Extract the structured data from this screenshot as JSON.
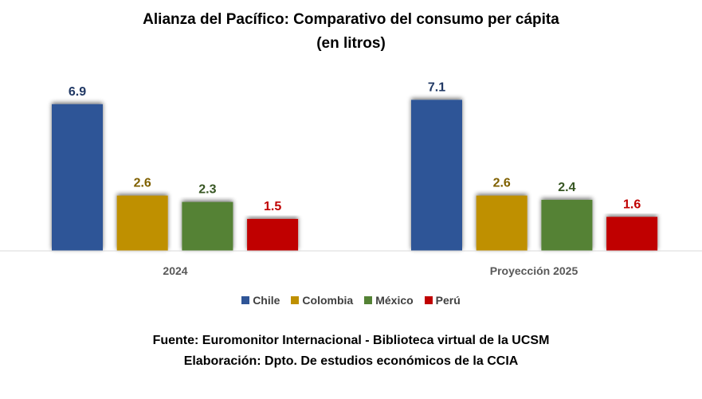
{
  "chart_data": {
    "type": "bar",
    "title": "Alianza del Pacífico: Comparativo del consumo per cápita",
    "subtitle": "(en litros)",
    "categories": [
      "2024",
      "Proyección 2025"
    ],
    "series": [
      {
        "name": "Chile",
        "values": [
          6.9,
          7.1
        ],
        "color": "#2F5597",
        "label_color": "#203864"
      },
      {
        "name": "Colombia",
        "values": [
          2.6,
          2.6
        ],
        "color": "#BF9000",
        "label_color": "#7F6000"
      },
      {
        "name": "México",
        "values": [
          2.3,
          2.4
        ],
        "color": "#548235",
        "label_color": "#375623"
      },
      {
        "name": "Perú",
        "values": [
          1.5,
          1.6
        ],
        "color": "#C00000",
        "label_color": "#C00000"
      }
    ],
    "value_labels": [
      [
        "6.9",
        "7.1"
      ],
      [
        "2.6",
        "2.6"
      ],
      [
        "2.3",
        "2.4"
      ],
      [
        "1.5",
        "1.6"
      ]
    ],
    "xlabel": "",
    "ylabel": "",
    "ylim": [
      0,
      7.5
    ],
    "grid": false,
    "legend_position": "bottom"
  },
  "footer": {
    "source": "Fuente: Euromonitor Internacional - Biblioteca virtual de la UCSM",
    "credit": "Elaboración: Dpto. De estudios económicos de la CCIA"
  }
}
